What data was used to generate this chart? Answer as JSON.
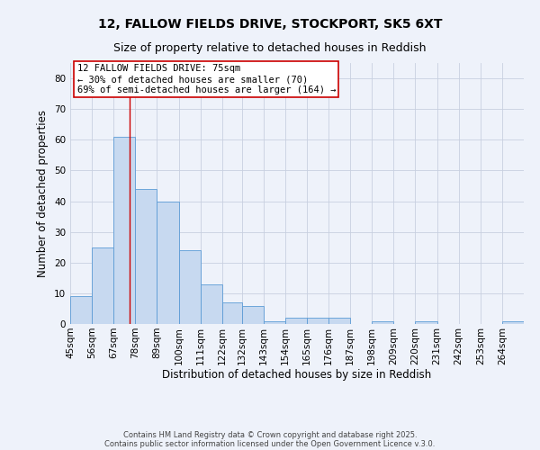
{
  "title1": "12, FALLOW FIELDS DRIVE, STOCKPORT, SK5 6XT",
  "title2": "Size of property relative to detached houses in Reddish",
  "xlabel": "Distribution of detached houses by size in Reddish",
  "ylabel": "Number of detached properties",
  "bin_labels": [
    "45sqm",
    "56sqm",
    "67sqm",
    "78sqm",
    "89sqm",
    "100sqm",
    "111sqm",
    "122sqm",
    "132sqm",
    "143sqm",
    "154sqm",
    "165sqm",
    "176sqm",
    "187sqm",
    "198sqm",
    "209sqm",
    "220sqm",
    "231sqm",
    "242sqm",
    "253sqm",
    "264sqm"
  ],
  "bin_edges": [
    45,
    56,
    67,
    78,
    89,
    100,
    111,
    122,
    132,
    143,
    154,
    165,
    176,
    187,
    198,
    209,
    220,
    231,
    242,
    253,
    264,
    275
  ],
  "values": [
    9,
    25,
    61,
    44,
    40,
    24,
    13,
    7,
    6,
    1,
    2,
    2,
    2,
    0,
    1,
    0,
    1,
    0,
    0,
    0,
    1
  ],
  "bar_color": "#c7d9f0",
  "bar_edge_color": "#5b9bd5",
  "vline_x": 75,
  "vline_color": "#cc0000",
  "annotation_text": "12 FALLOW FIELDS DRIVE: 75sqm\n← 30% of detached houses are smaller (70)\n69% of semi-detached houses are larger (164) →",
  "annotation_box_color": "#ffffff",
  "annotation_box_edge": "#cc0000",
  "ylim": [
    0,
    85
  ],
  "yticks": [
    0,
    10,
    20,
    30,
    40,
    50,
    60,
    70,
    80
  ],
  "grid_color": "#c8d0e0",
  "background_color": "#eef2fa",
  "footer1": "Contains HM Land Registry data © Crown copyright and database right 2025.",
  "footer2": "Contains public sector information licensed under the Open Government Licence v.3.0.",
  "title_fontsize": 10,
  "subtitle_fontsize": 9,
  "label_fontsize": 8.5,
  "tick_fontsize": 7.5,
  "annotation_fontsize": 7.5,
  "footer_fontsize": 6
}
